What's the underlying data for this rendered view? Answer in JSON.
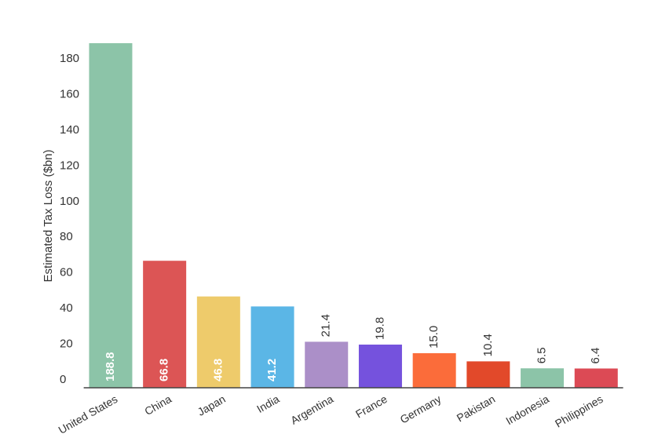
{
  "chart_data": {
    "type": "bar",
    "y_label": "Estimated Tax Loss ($bn)",
    "categories": [
      "United States",
      "China",
      "Japan",
      "India",
      "Argentina",
      "France",
      "Germany",
      "Pakistan",
      "Indonesia",
      "Philippines"
    ],
    "values": [
      188.8,
      66.8,
      46.8,
      41.2,
      21.4,
      19.8,
      15,
      10.4,
      6.5,
      6.4
    ],
    "value_labels": [
      "188.8",
      "66.8",
      "46.8",
      "41.2",
      "21.4",
      "19.8",
      "15.0",
      "10.4",
      "6.5",
      "6.4"
    ],
    "colors": [
      "#8cc4a8",
      "#dc5555",
      "#eecb6b",
      "#5bb6e6",
      "#ab8fc8",
      "#7552dd",
      "#fb6c3a",
      "#e2492a",
      "#8cc4a8",
      "#dc4a55"
    ],
    "ylim": [
      -4.4,
      190
    ],
    "yticks": [
      0,
      20,
      40,
      60,
      80,
      100,
      120,
      140,
      160,
      180
    ],
    "grid": false
  }
}
